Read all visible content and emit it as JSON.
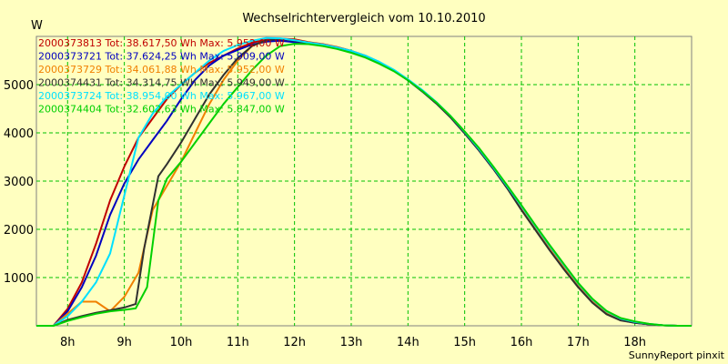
{
  "chart_data": {
    "type": "line",
    "title": "Wechselrichtervergleich vom 10.10.2010",
    "ylabel": "W",
    "xlabel": "",
    "xlim": [
      7.45,
      19.0
    ],
    "ylim": [
      0,
      6000
    ],
    "x_ticks": [
      8,
      9,
      10,
      11,
      12,
      13,
      14,
      15,
      16,
      17,
      18
    ],
    "x_tick_labels": [
      "8h",
      "9h",
      "10h",
      "11h",
      "12h",
      "13h",
      "14h",
      "15h",
      "16h",
      "17h",
      "18h"
    ],
    "y_ticks": [
      1000,
      2000,
      3000,
      4000,
      5000
    ],
    "y_tick_labels": [
      "1000",
      "2000",
      "3000",
      "4000",
      "5000"
    ],
    "grid": true,
    "legend_position": "top-left",
    "footer": "SunnyReport pinxit",
    "series": [
      {
        "name": "2000373813 Tot: 38.617,50 Wh Max: 5.952,00 W",
        "color": "#c00000",
        "x": [
          7.45,
          7.75,
          8.0,
          8.25,
          8.5,
          8.75,
          9.0,
          9.25,
          9.5,
          9.75,
          10.0,
          10.25,
          10.5,
          10.75,
          11.0,
          11.25,
          11.5,
          11.75,
          12.0,
          12.25,
          12.5,
          12.75,
          13.0,
          13.25,
          13.5,
          13.75,
          14.0,
          14.25,
          14.5,
          14.75,
          15.0,
          15.25,
          15.5,
          15.75,
          16.0,
          16.25,
          16.5,
          16.75,
          17.0,
          17.25,
          17.5,
          17.75,
          18.0,
          18.25,
          18.5,
          18.75,
          19.0
        ],
        "values": [
          0,
          0,
          350,
          900,
          1700,
          2600,
          3300,
          3900,
          4300,
          4700,
          5000,
          5250,
          5450,
          5600,
          5750,
          5870,
          5930,
          5952,
          5940,
          5880,
          5840,
          5780,
          5700,
          5600,
          5460,
          5300,
          5100,
          4880,
          4620,
          4330,
          4000,
          3650,
          3270,
          2870,
          2450,
          2020,
          1600,
          1200,
          820,
          500,
          260,
          130,
          70,
          30,
          10,
          0,
          0
        ]
      },
      {
        "name": "2000373721 Tot: 37.624,25 Wh Max: 5.909,00 W",
        "color": "#0000c0",
        "x": [
          7.45,
          7.75,
          8.0,
          8.25,
          8.5,
          8.75,
          9.0,
          9.25,
          9.5,
          9.75,
          10.0,
          10.25,
          10.5,
          10.75,
          11.0,
          11.25,
          11.5,
          11.75,
          12.0,
          12.25,
          12.5,
          12.75,
          13.0,
          13.25,
          13.5,
          13.75,
          14.0,
          14.25,
          14.5,
          14.75,
          15.0,
          15.25,
          15.5,
          15.75,
          16.0,
          16.25,
          16.5,
          16.75,
          17.0,
          17.25,
          17.5,
          17.75,
          18.0,
          18.25,
          18.5,
          18.75,
          19.0
        ],
        "values": [
          0,
          0,
          300,
          800,
          1450,
          2300,
          2950,
          3450,
          3850,
          4250,
          4700,
          5100,
          5400,
          5600,
          5720,
          5830,
          5890,
          5909,
          5880,
          5850,
          5820,
          5760,
          5680,
          5580,
          5450,
          5290,
          5090,
          4860,
          4610,
          4320,
          3990,
          3640,
          3260,
          2860,
          2440,
          2010,
          1590,
          1190,
          810,
          490,
          250,
          120,
          60,
          30,
          10,
          0,
          0
        ]
      },
      {
        "name": "2000373729 Tot: 34.061,88 Wh Max: 5.952,00 W",
        "color": "#f08000",
        "x": [
          7.45,
          7.75,
          8.0,
          8.25,
          8.5,
          8.75,
          9.0,
          9.25,
          9.5,
          9.75,
          10.0,
          10.25,
          10.5,
          10.75,
          11.0,
          11.25,
          11.5,
          11.75,
          12.0,
          12.25,
          12.5,
          12.75,
          13.0,
          13.25,
          13.5,
          13.75,
          14.0,
          14.25,
          14.5,
          14.75,
          15.0,
          15.25,
          15.5,
          15.75,
          16.0,
          16.25,
          16.5,
          16.75,
          17.0,
          17.25,
          17.5,
          17.75,
          18.0,
          18.25,
          18.5,
          18.75,
          19.0
        ],
        "values": [
          0,
          0,
          250,
          500,
          500,
          300,
          600,
          1100,
          2400,
          2900,
          3400,
          4000,
          4600,
          5100,
          5500,
          5800,
          5920,
          5952,
          5920,
          5870,
          5830,
          5770,
          5690,
          5590,
          5460,
          5300,
          5100,
          4870,
          4620,
          4330,
          4000,
          3650,
          3270,
          2870,
          2450,
          2020,
          1600,
          1200,
          820,
          500,
          260,
          130,
          70,
          30,
          10,
          0,
          0
        ]
      },
      {
        "name": "2000374431 Tot: 34.314,75 Wh Max: 5.949,00 W",
        "color": "#303030",
        "x": [
          7.45,
          7.75,
          8.0,
          8.25,
          8.5,
          8.75,
          9.0,
          9.2,
          9.35,
          9.6,
          9.75,
          10.0,
          10.25,
          10.5,
          10.75,
          11.0,
          11.25,
          11.5,
          11.75,
          12.0,
          12.25,
          12.5,
          12.75,
          13.0,
          13.25,
          13.5,
          13.75,
          14.0,
          14.25,
          14.5,
          14.75,
          15.0,
          15.25,
          15.5,
          15.75,
          16.0,
          16.25,
          16.5,
          16.75,
          17.0,
          17.25,
          17.5,
          17.75,
          18.0,
          18.25,
          18.5,
          18.75,
          19.0
        ],
        "values": [
          0,
          0,
          120,
          200,
          270,
          320,
          380,
          450,
          1600,
          3100,
          3350,
          3800,
          4300,
          4800,
          5200,
          5550,
          5800,
          5920,
          5949,
          5910,
          5860,
          5820,
          5760,
          5680,
          5580,
          5450,
          5290,
          5090,
          4860,
          4610,
          4320,
          3990,
          3640,
          3260,
          2850,
          2400,
          1980,
          1560,
          1170,
          800,
          480,
          240,
          110,
          60,
          30,
          10,
          0,
          0
        ]
      },
      {
        "name": "2000373724 Tot: 38.954,00 Wh Max: 5.967,00 W",
        "color": "#00e0ff",
        "x": [
          7.45,
          7.75,
          8.0,
          8.25,
          8.5,
          8.75,
          9.0,
          9.25,
          9.5,
          9.75,
          10.0,
          10.25,
          10.5,
          10.75,
          11.0,
          11.25,
          11.5,
          11.75,
          12.0,
          12.25,
          12.5,
          12.75,
          13.0,
          13.25,
          13.5,
          13.75,
          14.0,
          14.25,
          14.5,
          14.75,
          15.0,
          15.25,
          15.5,
          15.75,
          16.0,
          16.25,
          16.5,
          16.75,
          17.0,
          17.25,
          17.5,
          17.75,
          18.0,
          18.25,
          18.5,
          18.75,
          19.0
        ],
        "values": [
          0,
          0,
          200,
          500,
          900,
          1500,
          2700,
          3900,
          4400,
          4750,
          5000,
          5250,
          5500,
          5700,
          5820,
          5910,
          5967,
          5960,
          5920,
          5870,
          5830,
          5770,
          5700,
          5600,
          5470,
          5310,
          5110,
          4890,
          4640,
          4350,
          4020,
          3670,
          3290,
          2890,
          2480,
          2060,
          1650,
          1260,
          880,
          550,
          300,
          150,
          80,
          40,
          10,
          0,
          0
        ]
      },
      {
        "name": "2000374404 Tot: 32.602,63 Wh Max: 5.847,00 W",
        "color": "#00d000",
        "x": [
          7.45,
          7.75,
          8.0,
          8.25,
          8.5,
          8.75,
          9.0,
          9.2,
          9.4,
          9.6,
          9.75,
          10.0,
          10.25,
          10.5,
          10.75,
          11.0,
          11.25,
          11.5,
          11.75,
          12.0,
          12.25,
          12.5,
          12.75,
          13.0,
          13.25,
          13.5,
          13.75,
          14.0,
          14.25,
          14.5,
          14.75,
          15.0,
          15.25,
          15.5,
          15.75,
          16.0,
          16.25,
          16.5,
          16.75,
          17.0,
          17.25,
          17.5,
          17.75,
          18.0,
          18.25,
          18.5,
          18.75,
          19.0
        ],
        "values": [
          0,
          0,
          100,
          180,
          250,
          300,
          330,
          360,
          800,
          2600,
          3050,
          3400,
          3800,
          4200,
          4600,
          4950,
          5300,
          5600,
          5800,
          5847,
          5840,
          5800,
          5740,
          5660,
          5560,
          5430,
          5280,
          5090,
          4870,
          4630,
          4350,
          4030,
          3690,
          3310,
          2910,
          2500,
          2080,
          1670,
          1280,
          890,
          560,
          310,
          160,
          90,
          40,
          10,
          0,
          0
        ]
      }
    ]
  }
}
